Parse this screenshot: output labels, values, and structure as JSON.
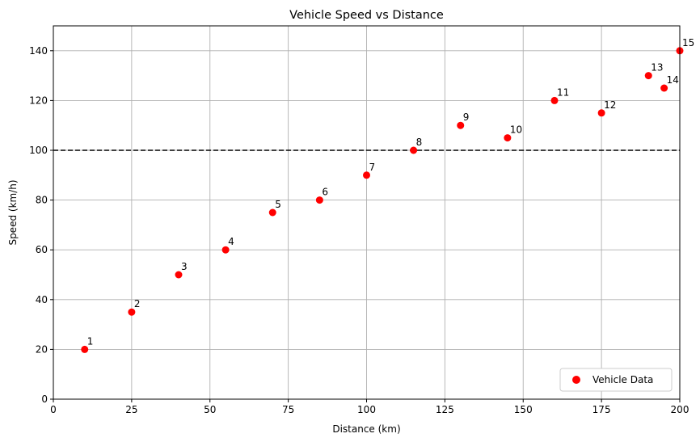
{
  "chart_data": {
    "type": "scatter",
    "title": "Vehicle Speed vs Distance",
    "xlabel": "Distance (km)",
    "ylabel": "Speed (km/h)",
    "xlim": [
      0,
      200
    ],
    "ylim": [
      0,
      150
    ],
    "xticks": [
      0,
      25,
      50,
      75,
      100,
      125,
      150,
      175,
      200
    ],
    "yticks": [
      0,
      20,
      40,
      60,
      80,
      100,
      120,
      140
    ],
    "grid": true,
    "legend_position": "lower-right",
    "series": [
      {
        "name": "Vehicle Data",
        "color": "#ff0000",
        "points": [
          {
            "label": "1",
            "x": 10,
            "y": 20
          },
          {
            "label": "2",
            "x": 25,
            "y": 35
          },
          {
            "label": "3",
            "x": 40,
            "y": 50
          },
          {
            "label": "4",
            "x": 55,
            "y": 60
          },
          {
            "label": "5",
            "x": 70,
            "y": 75
          },
          {
            "label": "6",
            "x": 85,
            "y": 80
          },
          {
            "label": "7",
            "x": 100,
            "y": 90
          },
          {
            "label": "8",
            "x": 115,
            "y": 100
          },
          {
            "label": "9",
            "x": 130,
            "y": 110
          },
          {
            "label": "10",
            "x": 145,
            "y": 105
          },
          {
            "label": "11",
            "x": 160,
            "y": 120
          },
          {
            "label": "12",
            "x": 175,
            "y": 115
          },
          {
            "label": "13",
            "x": 190,
            "y": 130
          },
          {
            "label": "14",
            "x": 195,
            "y": 125
          },
          {
            "label": "15",
            "x": 200,
            "y": 140
          }
        ]
      }
    ],
    "reference_line": {
      "axis": "y",
      "value": 100,
      "style": "dashed",
      "color": "#000000"
    }
  }
}
